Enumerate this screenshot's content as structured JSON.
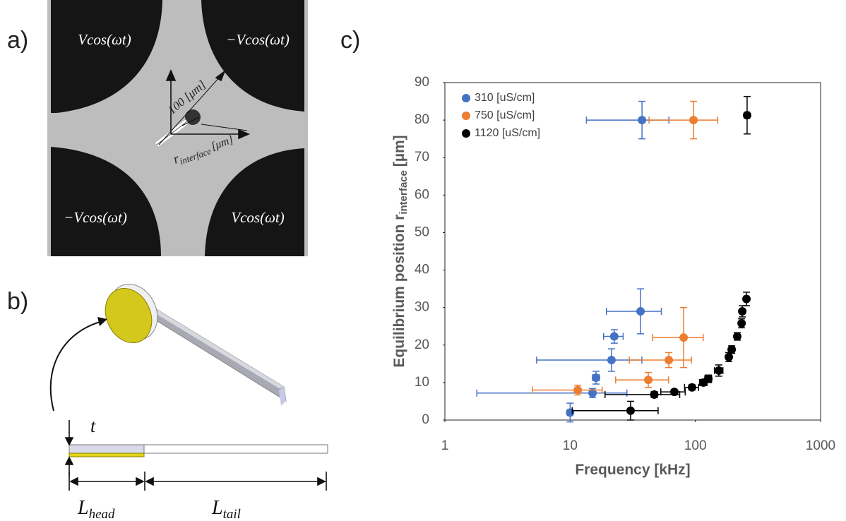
{
  "panel_labels": [
    "a)",
    "b)",
    "c)"
  ],
  "panel_a": {
    "electrodes": [
      "Vcos(ωt)",
      "−Vcos(ωt)",
      "−Vcos(ωt)",
      "Vcos(ωt)"
    ],
    "scale": "100 [μm]",
    "r_symbol": "r",
    "r_sub": "interface",
    "r_unit": "[μm]"
  },
  "panel_b": {
    "t": "t",
    "head_symbol": "L",
    "head_sub": "head",
    "tail_symbol": "L",
    "tail_sub": "tail"
  },
  "chart_data": {
    "type": "scatter",
    "xlabel": "Frequency [kHz]",
    "ylabel": "Equilibrium position r",
    "ylabel_sub": "interface",
    "ylabel_unit": "[µm]",
    "xlog": true,
    "xlim": [
      1,
      1000
    ],
    "xticks": [
      1,
      10,
      100,
      1000
    ],
    "ylim": [
      0,
      90
    ],
    "yticks": [
      0,
      10,
      20,
      30,
      40,
      50,
      60,
      70,
      80,
      90
    ],
    "legend": "upper left",
    "series": [
      {
        "name": "310 [uS/cm]",
        "color": "#4472c4",
        "x": [
          37.5,
          36.5,
          22.5,
          21.4,
          16.1,
          15.1,
          10
        ],
        "values": [
          80,
          29,
          22.3,
          16,
          11.3,
          7.2,
          2
        ],
        "xerr": [
          24,
          17,
          4,
          16,
          1,
          13.3,
          0.5
        ],
        "yerr": [
          5,
          6,
          1.8,
          3,
          1.7,
          1.2,
          2.5
        ]
      },
      {
        "name": "750 [uS/cm]",
        "color": "#ed7d31",
        "x": [
          96.7,
          80.6,
          61.4,
          42.1,
          11.5
        ],
        "values": [
          80,
          22,
          16,
          10.7,
          8
        ],
        "xerr": [
          54,
          35,
          31.7,
          19,
          6.5
        ],
        "yerr": [
          5,
          8,
          2,
          2,
          1.3
        ]
      },
      {
        "name": "1120 [uS/cm]",
        "color": "#000000",
        "x": [
          259,
          256,
          237,
          234,
          216,
          195,
          185,
          154,
          127,
          116,
          94,
          68,
          47,
          30.4
        ],
        "values": [
          81.3,
          32.3,
          29,
          25.8,
          22.3,
          18.8,
          16.8,
          13.2,
          11,
          10,
          8.7,
          7.5,
          6.8,
          2.5
        ],
        "xerr": [
          13,
          10,
          8,
          6,
          8,
          8,
          6,
          12,
          8,
          8,
          12,
          15,
          28,
          20
        ],
        "yerr": [
          5,
          1.8,
          1.5,
          1.2,
          1,
          1,
          1.2,
          1.5,
          1,
          0.8,
          0.7,
          0.5,
          0.8,
          2.5
        ]
      }
    ]
  }
}
